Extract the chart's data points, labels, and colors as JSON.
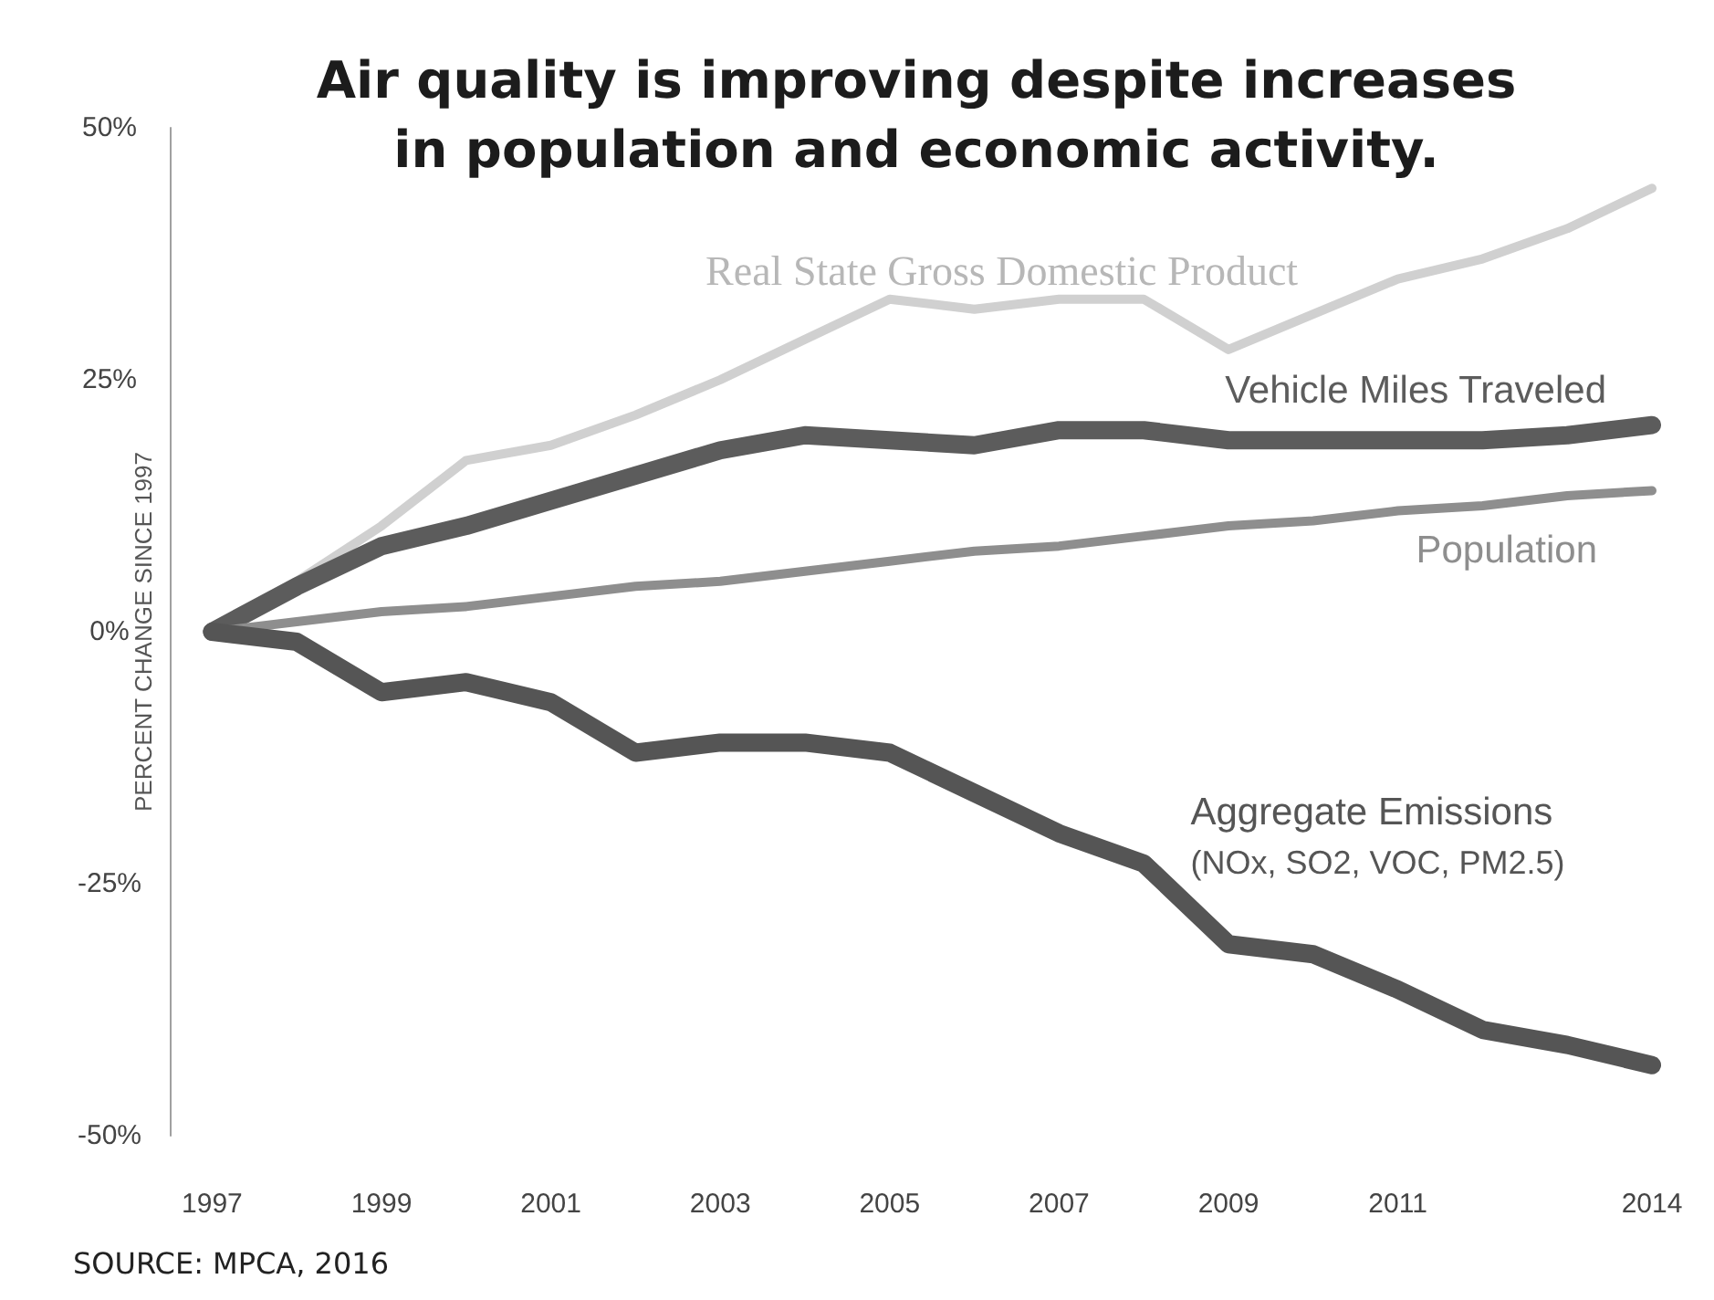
{
  "chart_data": {
    "type": "line",
    "title": "Air quality is improving despite increases in population and economic activity.",
    "ylabel": "PERCENT CHANGE SINCE 1997",
    "annotations": [
      "SOURCE: MPCA, 2016"
    ],
    "x": [
      1997,
      1998,
      1999,
      2000,
      2001,
      2002,
      2003,
      2004,
      2005,
      2006,
      2007,
      2008,
      2009,
      2010,
      2011,
      2012,
      2013,
      2014
    ],
    "series": [
      {
        "name": "Real State Gross Domestic Product",
        "color": "#d0d0d0",
        "values": [
          0,
          5,
          10.5,
          17,
          18.5,
          21.5,
          25,
          29,
          33,
          32,
          33,
          33,
          28,
          31.5,
          35,
          37,
          40,
          44
        ]
      },
      {
        "name": "Vehicle Miles Traveled",
        "color": "#5c5c5c",
        "values": [
          0,
          4.5,
          8.5,
          10.5,
          13,
          15.5,
          18,
          19.5,
          19,
          18.5,
          20,
          20,
          19,
          19,
          19,
          19,
          19.5,
          20.5
        ]
      },
      {
        "name": "Population",
        "color": "#8e8e8e",
        "values": [
          0,
          1,
          2,
          2.5,
          3.5,
          4.5,
          5,
          6,
          7,
          8,
          8.5,
          9.5,
          10.5,
          11,
          12,
          12.5,
          13.5,
          14
        ]
      },
      {
        "name": "Aggregate Emissions (NOx, SO2, VOC, PM2.5)",
        "color": "#555555",
        "values": [
          0,
          -1,
          -6,
          -5,
          -7,
          -12,
          -11,
          -11,
          -12,
          -16,
          -20,
          -23,
          -31,
          -32,
          -35.5,
          -39.5,
          -41,
          -43
        ]
      }
    ],
    "xlim": [
      1996.5,
      2014
    ],
    "xticks": [
      1997,
      1999,
      2001,
      2003,
      2005,
      2007,
      2009,
      2011,
      2014
    ],
    "ylim": [
      -50,
      50
    ],
    "yticks": [
      {
        "value": -50,
        "label": "-50%"
      },
      {
        "value": -25,
        "label": "-25%"
      },
      {
        "value": 0,
        "label": "0%"
      },
      {
        "value": 25,
        "label": "25%"
      },
      {
        "value": 50,
        "label": "50%"
      }
    ],
    "grid": false,
    "legend": false,
    "marker": "none",
    "line_style": "solid"
  }
}
